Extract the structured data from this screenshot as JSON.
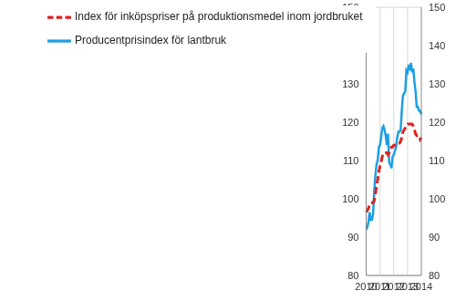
{
  "chart_data": {
    "type": "line",
    "categories": [
      "2010",
      null,
      null,
      null,
      null,
      null,
      null,
      null,
      null,
      null,
      null,
      null,
      "2011",
      null,
      null,
      null,
      null,
      null,
      null,
      null,
      null,
      null,
      null,
      null,
      "2012",
      null,
      null,
      null,
      null,
      null,
      null,
      null,
      null,
      null,
      null,
      null,
      "2013",
      null,
      null,
      null,
      null,
      null,
      null,
      null,
      null,
      null,
      null,
      null,
      "2014"
    ],
    "series": [
      {
        "name": "Producentprisindex för lantbruk",
        "color": "#1e9fe3",
        "line_style": "solid",
        "values": [
          92,
          92.5,
          94,
          96.5,
          94.5,
          94.5,
          96,
          102,
          106,
          109,
          110,
          113.5,
          114,
          116,
          118.5,
          119,
          118,
          116.5,
          114,
          117,
          109.5,
          109,
          108,
          111,
          111.5,
          112.5,
          113.5,
          116,
          117.5,
          117.5,
          118,
          123,
          127,
          127.5,
          128,
          133.5,
          133,
          135,
          133.5,
          135.5,
          133,
          134,
          130.5,
          128,
          124,
          124,
          123,
          123,
          122
        ]
      },
      {
        "name": "Index för inköpspriser på produktionsmedel inom jordbruket",
        "color": "#e02020",
        "line_style": "dashed",
        "values": [
          96.5,
          97,
          97.5,
          98.5,
          99,
          99,
          99,
          99.5,
          101,
          103.5,
          105,
          107,
          108.5,
          109.5,
          111,
          112,
          112,
          112,
          112,
          111.5,
          112,
          113,
          113.5,
          113.5,
          114,
          114,
          114.5,
          114.5,
          114.5,
          114.5,
          115,
          116,
          117.5,
          118,
          118.5,
          119,
          119.5,
          119.5,
          119.5,
          119.5,
          119.5,
          119,
          118,
          117,
          116.5,
          116.5,
          116.5,
          115.5,
          116
        ]
      }
    ],
    "ylim": [
      80,
      150
    ],
    "yticks": [
      80,
      90,
      100,
      110,
      120,
      130,
      140,
      150
    ],
    "grid": true,
    "legend": "upper left"
  }
}
